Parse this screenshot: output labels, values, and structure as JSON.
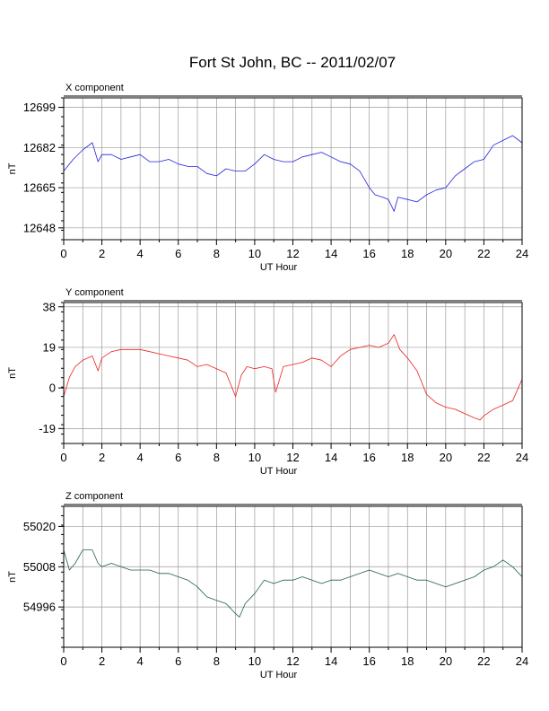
{
  "title": "Fort St John, BC -- 2011/02/07",
  "chart_data": [
    {
      "type": "line",
      "title": "X component",
      "xlabel": "UT Hour",
      "ylabel": "nT",
      "xlim": [
        0,
        24
      ],
      "ylim": [
        12643,
        12703
      ],
      "xticks": [
        0,
        2,
        4,
        6,
        8,
        10,
        12,
        14,
        16,
        18,
        20,
        22,
        24
      ],
      "yticks": [
        12648,
        12665,
        12682,
        12699
      ],
      "grid": true,
      "color": "#2020dd",
      "series": [
        {
          "x": [
            0,
            0.5,
            1,
            1.5,
            1.8,
            2,
            2.5,
            3,
            3.5,
            4,
            4.5,
            5,
            5.5,
            6,
            6.5,
            7,
            7.5,
            8,
            8.5,
            9,
            9.5,
            10,
            10.5,
            11,
            11.5,
            12,
            12.5,
            13,
            13.5,
            14,
            14.5,
            15,
            15.5,
            16,
            16.3,
            16.7,
            17,
            17.3,
            17.5,
            18,
            18.5,
            19,
            19.5,
            20,
            20.5,
            21,
            21.5,
            22,
            22.5,
            23,
            23.5,
            24
          ],
          "y": [
            12672,
            12677,
            12681,
            12684,
            12676,
            12679,
            12679,
            12677,
            12678,
            12679,
            12676,
            12676,
            12677,
            12675,
            12674,
            12674,
            12671,
            12670,
            12673,
            12672,
            12672,
            12675,
            12679,
            12677,
            12676,
            12676,
            12678,
            12679,
            12680,
            12678,
            12676,
            12675,
            12672,
            12665,
            12662,
            12661,
            12660,
            12655,
            12661,
            12660,
            12659,
            12662,
            12664,
            12665,
            12670,
            12673,
            12676,
            12677,
            12683,
            12685,
            12687,
            12684
          ]
        }
      ]
    },
    {
      "type": "line",
      "title": "Y component",
      "xlabel": "UT Hour",
      "ylabel": "nT",
      "xlim": [
        0,
        24
      ],
      "ylim": [
        -26,
        40
      ],
      "xticks": [
        0,
        2,
        4,
        6,
        8,
        10,
        12,
        14,
        16,
        18,
        20,
        22,
        24
      ],
      "yticks": [
        -19,
        0,
        19,
        38
      ],
      "grid": true,
      "color": "#ee2020",
      "series": [
        {
          "x": [
            0,
            0.3,
            0.6,
            1,
            1.5,
            1.8,
            2,
            2.5,
            3,
            3.5,
            4,
            4.5,
            5,
            5.5,
            6,
            6.5,
            7,
            7.5,
            8,
            8.5,
            9,
            9.3,
            9.6,
            10,
            10.5,
            10.9,
            11.1,
            11.5,
            12,
            12.5,
            13,
            13.5,
            14,
            14.5,
            15,
            15.5,
            16,
            16.5,
            17,
            17.3,
            17.6,
            18,
            18.5,
            19,
            19.5,
            20,
            20.5,
            21,
            21.5,
            21.8,
            22,
            22.5,
            23,
            23.5,
            24
          ],
          "y": [
            -4,
            5,
            10,
            13,
            15,
            8,
            14,
            17,
            18,
            18,
            18,
            17,
            16,
            15,
            14,
            13,
            10,
            11,
            9,
            7,
            -4,
            6,
            10,
            9,
            10,
            9,
            -2,
            10,
            11,
            12,
            14,
            13,
            10,
            15,
            18,
            19,
            20,
            19,
            21,
            25,
            18,
            14,
            8,
            -3,
            -7,
            -9,
            -10,
            -12,
            -14,
            -15,
            -13,
            -10,
            -8,
            -6,
            4
          ]
        }
      ]
    },
    {
      "type": "line",
      "title": "Z component",
      "xlabel": "UT Hour",
      "ylabel": "nT",
      "xlim": [
        0,
        24
      ],
      "ylim": [
        54984,
        55026
      ],
      "xticks": [
        0,
        2,
        4,
        6,
        8,
        10,
        12,
        14,
        16,
        18,
        20,
        22,
        24
      ],
      "yticks": [
        54996,
        55008,
        55020
      ],
      "grid": true,
      "color": "#206040",
      "series": [
        {
          "x": [
            0,
            0.3,
            0.6,
            1,
            1.5,
            1.8,
            2,
            2.5,
            3,
            3.5,
            4,
            4.5,
            5,
            5.5,
            6,
            6.5,
            7,
            7.5,
            8,
            8.5,
            9,
            9.2,
            9.5,
            10,
            10.5,
            11,
            11.5,
            12,
            12.5,
            13,
            13.5,
            14,
            14.5,
            15,
            15.5,
            16,
            16.5,
            17,
            17.5,
            18,
            18.5,
            19,
            19.5,
            20,
            20.5,
            21,
            21.5,
            22,
            22.5,
            23,
            23.5,
            24
          ],
          "y": [
            55013,
            55007,
            55009,
            55013,
            55013,
            55009,
            55008,
            55009,
            55008,
            55007,
            55007,
            55007,
            55006,
            55006,
            55005,
            55004,
            55002,
            54999,
            54998,
            54997,
            54994,
            54993,
            54997,
            55000,
            55004,
            55003,
            55004,
            55004,
            55005,
            55004,
            55003,
            55004,
            55004,
            55005,
            55006,
            55007,
            55006,
            55005,
            55006,
            55005,
            55004,
            55004,
            55003,
            55002,
            55003,
            55004,
            55005,
            55007,
            55008,
            55010,
            55008,
            55005
          ]
        }
      ]
    }
  ]
}
